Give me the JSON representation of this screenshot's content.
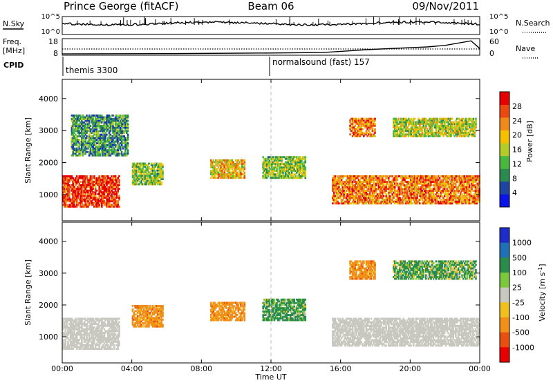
{
  "header": {
    "station": "Prince George (fitACF)",
    "beam": "Beam 06",
    "date": "09/Nov/2011"
  },
  "panels": {
    "nsky_label": "N.Sky",
    "nsky_ticks": [
      "10^5",
      "10^0"
    ],
    "nsearch_label": "N.Search",
    "nsearch_ticks": [
      "10^5",
      "10^0"
    ],
    "freq_label_1": "Freq.",
    "freq_label_2": "[MHz]",
    "freq_ticks": [
      "18",
      "8"
    ],
    "nave_label": "Nave",
    "nave_ticks": [
      "60",
      "0"
    ],
    "cpid_label": "CPID",
    "cpid_segments": [
      {
        "name": "themis 3300",
        "start_hour": 0
      },
      {
        "name": "normalsound (fast) 157",
        "start_hour": 12
      }
    ]
  },
  "colors": {
    "power_scale": [
      "#0a14e6",
      "#1e46a0",
      "#2a8a50",
      "#4ab840",
      "#b4cc28",
      "#f5c000",
      "#f08a1a",
      "#e84a10",
      "#e60000"
    ],
    "velocity_scale": [
      "#1e2cc8",
      "#2070b8",
      "#2a8c4a",
      "#7cc83c",
      "#c8c8c0",
      "#f0c020",
      "#f09018",
      "#e85010",
      "#e60000"
    ],
    "velocity_ground": "#c8c8c0"
  },
  "chart_data": [
    {
      "type": "heatmap",
      "title": "Power",
      "ylabel": "Slant Range [km]",
      "xlabel": "Time UT",
      "colorbar_label": "Power [dB]",
      "colorbar_ticks": [
        "28",
        "24",
        "20",
        "16",
        "12",
        "8",
        "4"
      ],
      "colorbar_range": [
        0,
        32
      ],
      "x_ticks": [
        "00:00",
        "04:00",
        "08:00",
        "12:00",
        "16:00",
        "20:00",
        "00:00"
      ],
      "y_ticks": [
        "1000",
        "2000",
        "3000",
        "4000"
      ],
      "xlim_hours": [
        0,
        24
      ],
      "ylim_km": [
        180,
        4600
      ],
      "echo_regions": [
        {
          "t_start": 0.0,
          "t_end": 3.3,
          "r_low": 600,
          "r_high": 1600,
          "mean_power_db": 28
        },
        {
          "t_start": 0.5,
          "t_end": 3.8,
          "r_low": 2200,
          "r_high": 3500,
          "mean_power_db": 10
        },
        {
          "t_start": 4.0,
          "t_end": 5.8,
          "r_low": 1300,
          "r_high": 2000,
          "mean_power_db": 14
        },
        {
          "t_start": 8.5,
          "t_end": 10.5,
          "r_low": 1500,
          "r_high": 2100,
          "mean_power_db": 20
        },
        {
          "t_start": 11.5,
          "t_end": 14.0,
          "r_low": 1500,
          "r_high": 2200,
          "mean_power_db": 14
        },
        {
          "t_start": 15.5,
          "t_end": 24.0,
          "r_low": 700,
          "r_high": 1600,
          "mean_power_db": 24
        },
        {
          "t_start": 16.5,
          "t_end": 18.0,
          "r_low": 2800,
          "r_high": 3400,
          "mean_power_db": 24
        },
        {
          "t_start": 19.0,
          "t_end": 23.8,
          "r_low": 2800,
          "r_high": 3400,
          "mean_power_db": 16
        }
      ]
    },
    {
      "type": "heatmap",
      "title": "Velocity",
      "ylabel": "Slant Range [km]",
      "xlabel": "Time UT",
      "colorbar_label": "Velocity [m s^-1]",
      "colorbar_ticks": [
        "1000",
        "500",
        "100",
        "25",
        "-25",
        "-100",
        "-500",
        "-1000"
      ],
      "x_ticks": [
        "00:00",
        "04:00",
        "08:00",
        "12:00",
        "16:00",
        "20:00",
        "00:00"
      ],
      "y_ticks": [
        "1000",
        "2000",
        "3000",
        "4000"
      ],
      "xlim_hours": [
        0,
        24
      ],
      "ylim_km": [
        180,
        4600
      ],
      "echo_regions": [
        {
          "t_start": 0.0,
          "t_end": 3.3,
          "r_low": 600,
          "r_high": 1600,
          "velocity": 0,
          "ground_scatter": true
        },
        {
          "t_start": 4.0,
          "t_end": 5.8,
          "r_low": 1300,
          "r_high": 2000,
          "velocity": -300
        },
        {
          "t_start": 8.5,
          "t_end": 10.5,
          "r_low": 1500,
          "r_high": 2100,
          "velocity": -300
        },
        {
          "t_start": 11.5,
          "t_end": 14.0,
          "r_low": 1500,
          "r_high": 2200,
          "velocity": 200
        },
        {
          "t_start": 15.5,
          "t_end": 24.0,
          "r_low": 700,
          "r_high": 1600,
          "velocity": 0,
          "ground_scatter": true
        },
        {
          "t_start": 16.5,
          "t_end": 18.0,
          "r_low": 2800,
          "r_high": 3400,
          "velocity": -300
        },
        {
          "t_start": 19.0,
          "t_end": 23.8,
          "r_low": 2800,
          "r_high": 3400,
          "velocity": 150
        }
      ]
    }
  ]
}
